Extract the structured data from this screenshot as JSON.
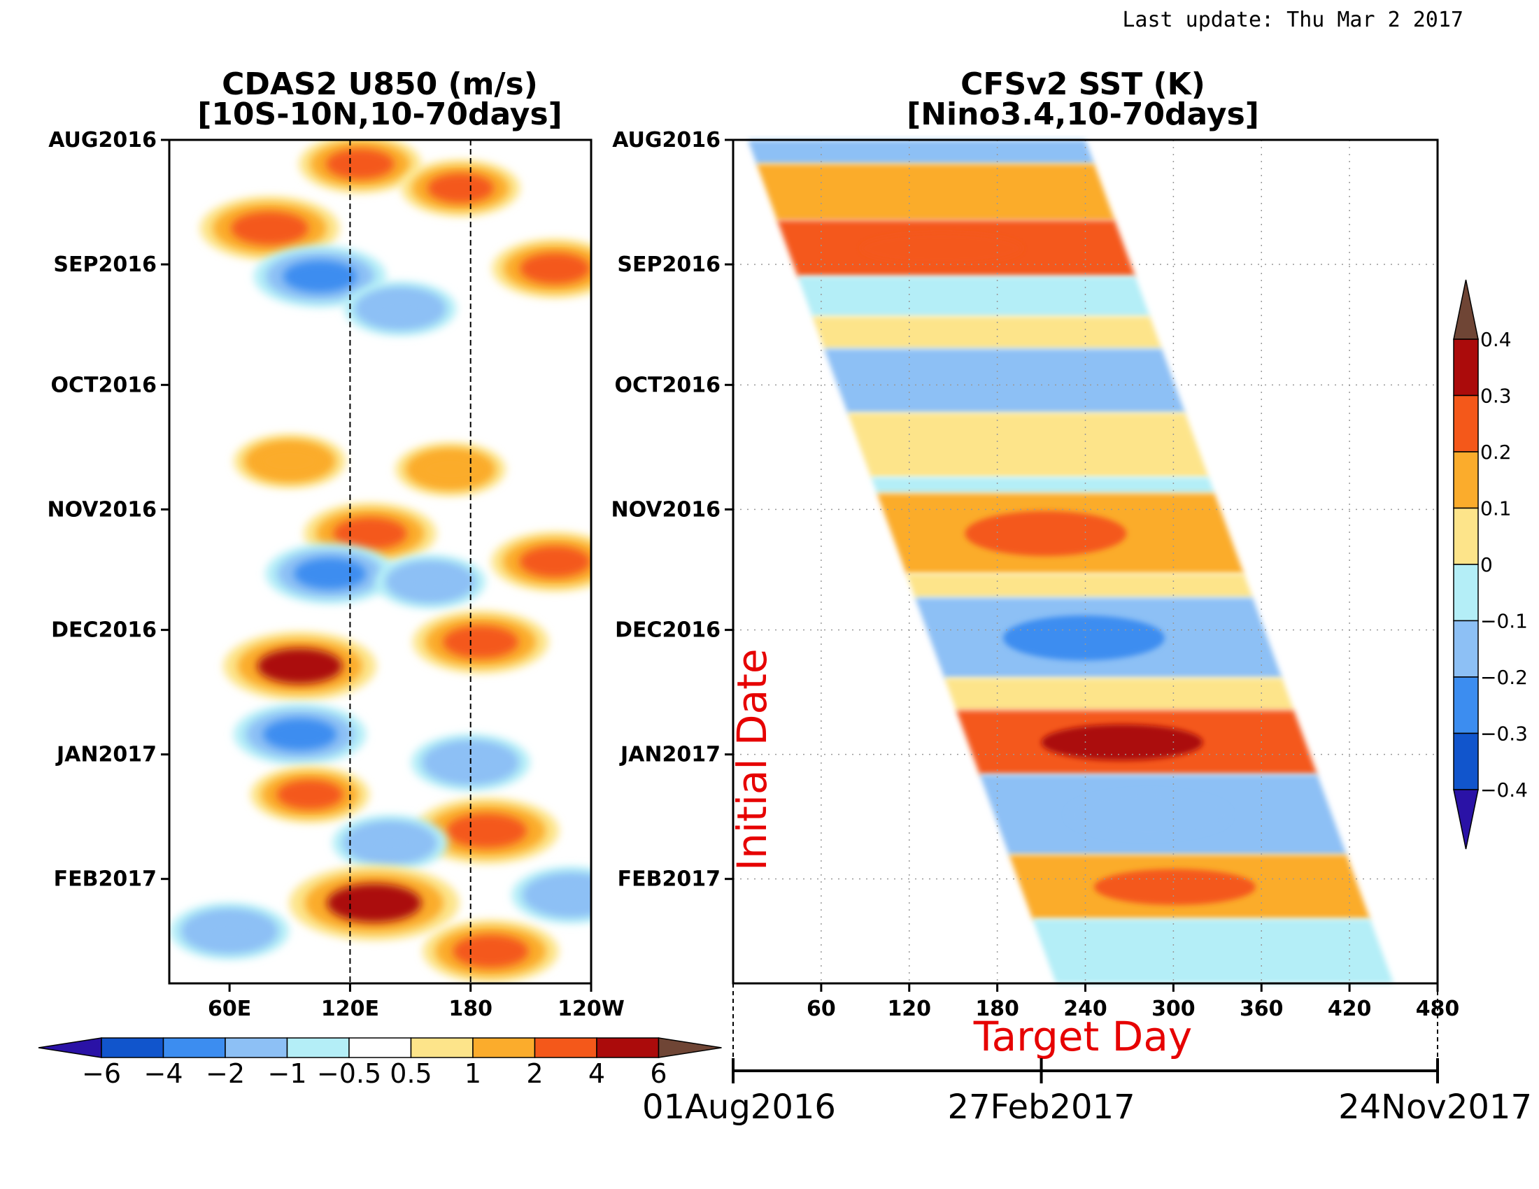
{
  "header": {
    "last_update": "Last update: Thu Mar 2 2017"
  },
  "chart_data": [
    {
      "type": "heatmap",
      "title": "CDAS2 U850 (m/s)",
      "subtitle": "[10S-10N,10-70days]",
      "xlabel": "",
      "ylabel": "",
      "x_ticks": [
        "60E",
        "120E",
        "180",
        "120W"
      ],
      "x_tick_values": [
        60,
        120,
        180,
        240
      ],
      "xlim": [
        30,
        240
      ],
      "y_ticks": [
        "AUG2016",
        "SEP2016",
        "OCT2016",
        "NOV2016",
        "DEC2016",
        "JAN2017",
        "FEB2017"
      ],
      "y_tick_days": [
        0,
        31,
        61,
        92,
        122,
        153,
        184
      ],
      "ylim_days": [
        0,
        210
      ],
      "reference_lines_lon": [
        120,
        180
      ],
      "colorbar": {
        "orientation": "horizontal",
        "labels": [
          "-6",
          "-4",
          "-2",
          "-1",
          "-0.5",
          "0.5",
          "1",
          "2",
          "4",
          "6"
        ],
        "levels": [
          -6,
          -4,
          -2,
          -1,
          -0.5,
          0.5,
          1,
          2,
          4,
          6
        ],
        "colors": [
          "#2a12a6",
          "#1155cc",
          "#3c8df0",
          "#8dc0f5",
          "#b4eef7",
          "#ffffff",
          "#fde48a",
          "#fbac2c",
          "#f4581a",
          "#ab0b0b",
          "#6f4535"
        ]
      },
      "anomalies": [
        {
          "lon": 80,
          "day": 22,
          "value": 3.2
        },
        {
          "lon": 125,
          "day": 6,
          "value": 2.2
        },
        {
          "lon": 175,
          "day": 12,
          "value": 2.0
        },
        {
          "lon": 222,
          "day": 32,
          "value": 2.4
        },
        {
          "lon": 105,
          "day": 34,
          "value": -2.8
        },
        {
          "lon": 145,
          "day": 42,
          "value": -1.6
        },
        {
          "lon": 90,
          "day": 80,
          "value": 1.6
        },
        {
          "lon": 170,
          "day": 82,
          "value": 1.5
        },
        {
          "lon": 130,
          "day": 98,
          "value": 2.8
        },
        {
          "lon": 222,
          "day": 105,
          "value": 2.5
        },
        {
          "lon": 110,
          "day": 108,
          "value": -2.6
        },
        {
          "lon": 160,
          "day": 110,
          "value": -1.5
        },
        {
          "lon": 95,
          "day": 131,
          "value": 4.0
        },
        {
          "lon": 185,
          "day": 125,
          "value": 3.0
        },
        {
          "lon": 95,
          "day": 148,
          "value": -2.8
        },
        {
          "lon": 180,
          "day": 155,
          "value": -2.0
        },
        {
          "lon": 100,
          "day": 163,
          "value": 2.0
        },
        {
          "lon": 188,
          "day": 172,
          "value": 3.5
        },
        {
          "lon": 140,
          "day": 175,
          "value": -1.8
        },
        {
          "lon": 230,
          "day": 188,
          "value": -2.0
        },
        {
          "lon": 132,
          "day": 190,
          "value": 5.0
        },
        {
          "lon": 190,
          "day": 202,
          "value": 3.0
        },
        {
          "lon": 60,
          "day": 197,
          "value": -2.0
        }
      ]
    },
    {
      "type": "heatmap",
      "title": "CFSv2 SST (K)",
      "subtitle": "[Nino3.4,10-70days]",
      "xlabel": "Target Day",
      "ylabel": "Initial Date",
      "x_ticks": [
        "60",
        "120",
        "180",
        "240",
        "300",
        "360",
        "420",
        "480"
      ],
      "x_tick_values": [
        60,
        120,
        180,
        240,
        300,
        360,
        420,
        480
      ],
      "xlim": [
        0,
        480
      ],
      "y_ticks": [
        "AUG2016",
        "SEP2016",
        "OCT2016",
        "NOV2016",
        "DEC2016",
        "JAN2017",
        "FEB2017"
      ],
      "y_tick_days": [
        0,
        31,
        61,
        92,
        122,
        153,
        184
      ],
      "ylim_days": [
        0,
        210
      ],
      "grid": true,
      "date_axis": {
        "labels": [
          "01Aug2016",
          "27Feb2017",
          "24Nov2017"
        ],
        "days": [
          0,
          210,
          480
        ]
      },
      "colorbar": {
        "orientation": "vertical",
        "labels": [
          "0.4",
          "0.3",
          "0.2",
          "0.1",
          "0",
          "-0.1",
          "-0.2",
          "-0.3",
          "-0.4"
        ],
        "levels": [
          -0.4,
          -0.3,
          -0.2,
          -0.1,
          0,
          0.1,
          0.2,
          0.3,
          0.4
        ],
        "colors": [
          "#2a12a6",
          "#1155cc",
          "#3c8df0",
          "#8dc0f5",
          "#b4eef7",
          "#fde48a",
          "#fbac2c",
          "#f4581a",
          "#ab0b0b",
          "#6f4535"
        ]
      },
      "bands": [
        {
          "day_from": 0,
          "day_to": 6,
          "value": -0.12
        },
        {
          "day_from": 6,
          "day_to": 20,
          "value": 0.12
        },
        {
          "day_from": 20,
          "day_to": 34,
          "value": 0.22
        },
        {
          "day_from": 34,
          "day_to": 44,
          "value": -0.05
        },
        {
          "day_from": 44,
          "day_to": 52,
          "value": 0.08
        },
        {
          "day_from": 52,
          "day_to": 68,
          "value": -0.14
        },
        {
          "day_from": 68,
          "day_to": 84,
          "value": 0.06
        },
        {
          "day_from": 84,
          "day_to": 88,
          "value": -0.05
        },
        {
          "day_from": 88,
          "day_to": 108,
          "value": 0.16
        },
        {
          "day_from": 108,
          "day_to": 114,
          "value": 0.05
        },
        {
          "day_from": 114,
          "day_to": 134,
          "value": -0.18
        },
        {
          "day_from": 134,
          "day_to": 142,
          "value": 0.05
        },
        {
          "day_from": 142,
          "day_to": 158,
          "value": 0.26
        },
        {
          "day_from": 158,
          "day_to": 178,
          "value": -0.15
        },
        {
          "day_from": 178,
          "day_to": 194,
          "value": 0.18
        },
        {
          "day_from": 194,
          "day_to": 210,
          "value": -0.08
        }
      ]
    }
  ]
}
